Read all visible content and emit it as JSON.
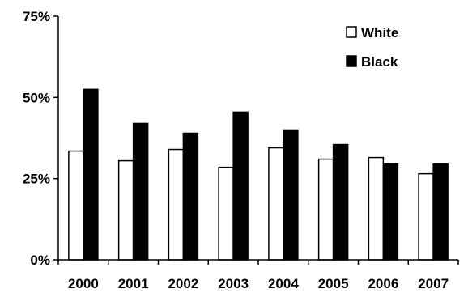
{
  "chart_data": {
    "type": "bar",
    "categories": [
      "2000",
      "2001",
      "2002",
      "2003",
      "2004",
      "2005",
      "2006",
      "2007"
    ],
    "series": [
      {
        "name": "White",
        "values": [
          33.5,
          30.5,
          34,
          28.5,
          34.5,
          31,
          31.5,
          26.5
        ],
        "color": "#ffffff"
      },
      {
        "name": "Black",
        "values": [
          52.5,
          42,
          39,
          45.5,
          40,
          35.5,
          29.5,
          29.5
        ],
        "color": "#000000"
      }
    ],
    "ylim": [
      0,
      75
    ],
    "yticks": [
      0,
      25,
      50,
      75
    ],
    "ytick_labels": [
      "0%",
      "25%",
      "50%",
      "75%"
    ],
    "title": "",
    "xlabel": "",
    "ylabel": "",
    "grid": false,
    "legend_position": "top-right"
  }
}
